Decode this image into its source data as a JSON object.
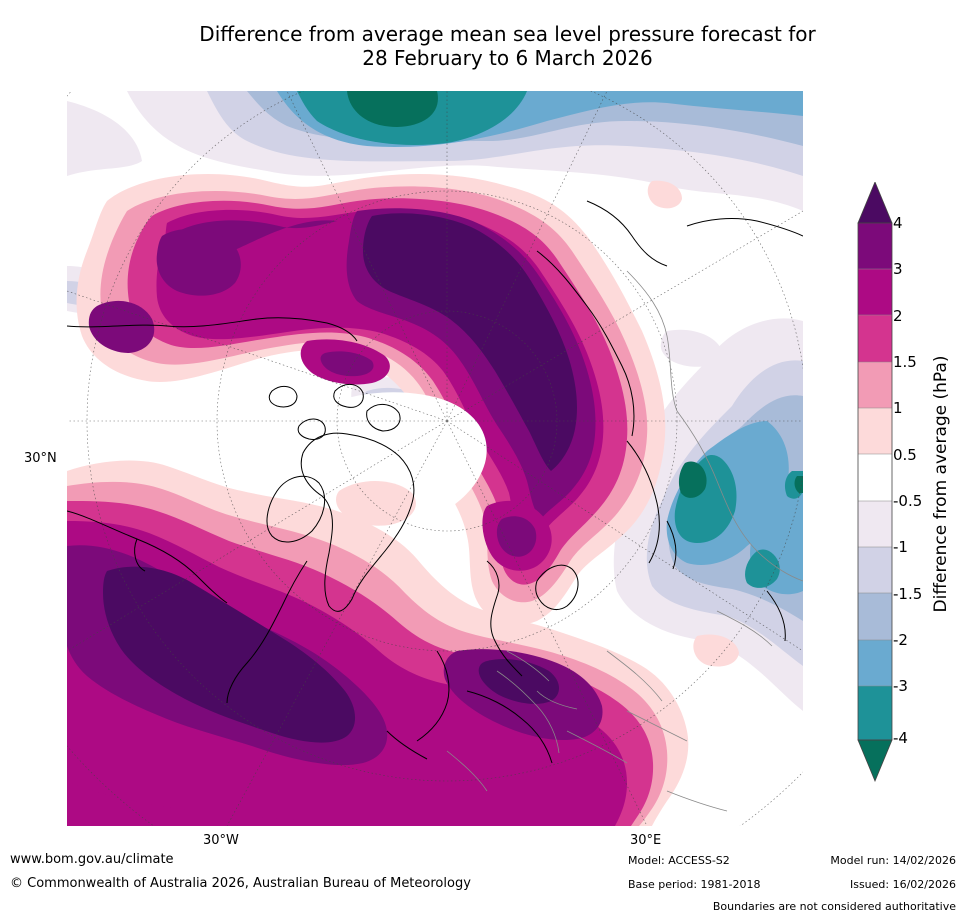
{
  "title": {
    "line1": "Difference from average mean sea level pressure forecast for",
    "line2": "28 February to 6 March 2026"
  },
  "map": {
    "projection": "north polar stereographic",
    "labels": {
      "lat30": "30°N",
      "lon30w": "30°W",
      "lon30e": "30°E"
    }
  },
  "colorbar": {
    "title": "Difference from average (hPa)",
    "ticks": [
      "4",
      "3",
      "2",
      "1.5",
      "1",
      "0.5",
      "-0.5",
      "-1",
      "-1.5",
      "-2",
      "-3",
      "-4"
    ],
    "colors": {
      "gt4": "#4b0a62",
      "c3_4": "#7c0a7a",
      "c2_3": "#ad0a84",
      "c15_2": "#d4348f",
      "c1_15": "#f29bb5",
      "c05_1": "#fddada",
      "c_neutral": "#ffffff",
      "cm05_m1": "#efe8f1",
      "cm1_m15": "#d1d2e6",
      "cm15_m2": "#a8bbd8",
      "cm2_m3": "#6aaad0",
      "cm3_m4": "#1e9298",
      "lt_m4": "#06705c"
    }
  },
  "footer": {
    "website": "www.bom.gov.au/climate",
    "copyright": "© Commonwealth of Australia 2026, Australian Bureau of Meteorology",
    "model": "Model: ACCESS-S2",
    "base_period": "Base period: 1981-2018",
    "model_run": "Model run: 14/02/2026",
    "issued": "Issued: 16/02/2026",
    "disclaimer": "Boundaries are not considered authoritative"
  }
}
